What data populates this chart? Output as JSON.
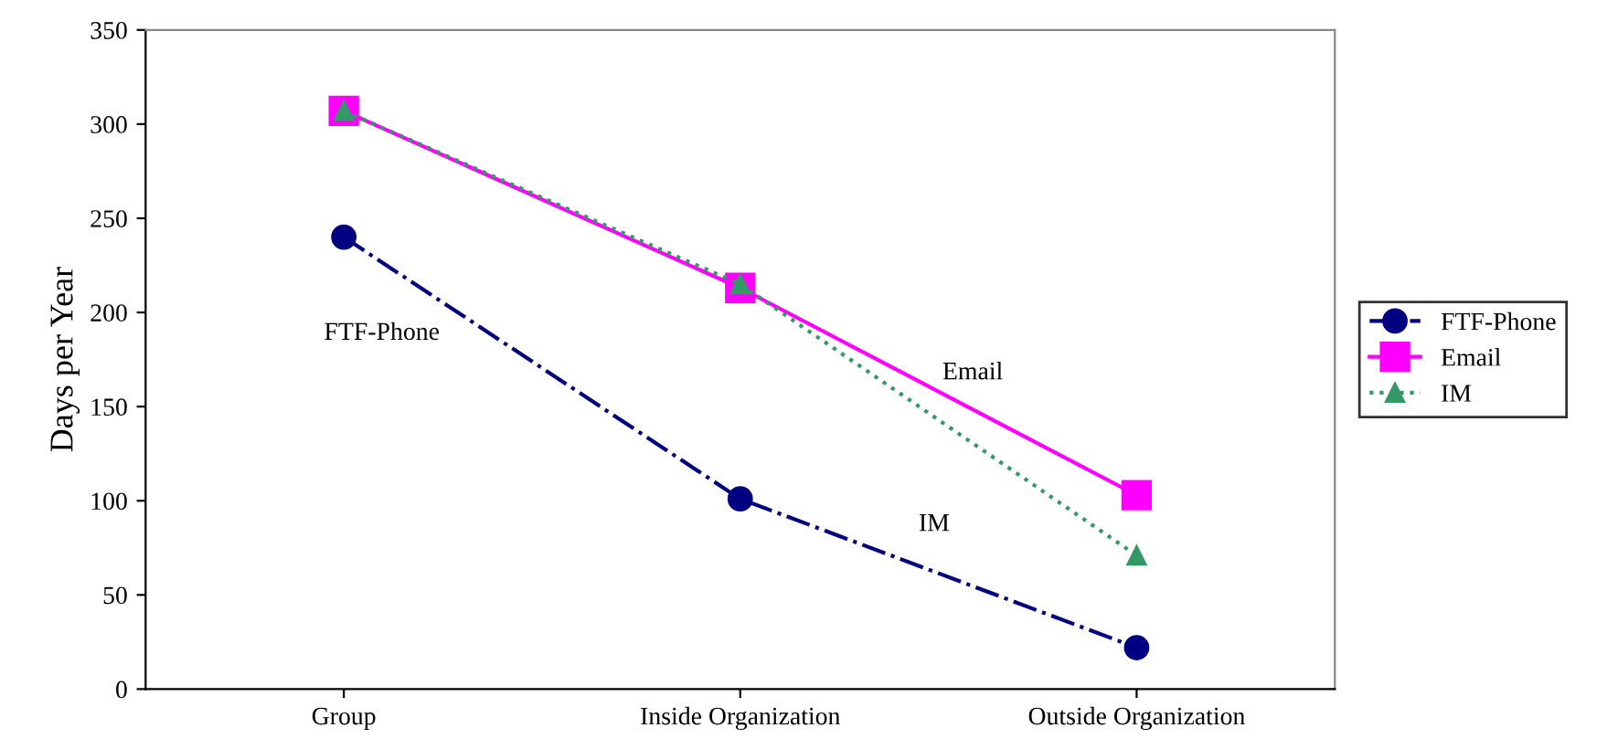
{
  "chart_data": {
    "type": "line",
    "ylabel": "Days per Year",
    "categories": [
      "Group",
      "Inside Organization",
      "Outside Organization"
    ],
    "series": [
      {
        "name": "FTF-Phone",
        "color": "#000080",
        "values": [
          240,
          101,
          22
        ],
        "marker": "circle",
        "line_style": "dashdot"
      },
      {
        "name": "Email",
        "color": "#ff00ff",
        "values": [
          307,
          213,
          103
        ],
        "marker": "square",
        "line_style": "solid"
      },
      {
        "name": "IM",
        "color": "#339966",
        "values": [
          307,
          215,
          71
        ],
        "marker": "triangle",
        "line_style": "dotted"
      }
    ],
    "annotations": [
      "FTF-Phone",
      "Email",
      "IM"
    ],
    "ylim": [
      0,
      350
    ],
    "yticks": [
      0,
      50,
      100,
      150,
      200,
      250,
      300,
      350
    ],
    "grid": false,
    "legend": "right"
  }
}
